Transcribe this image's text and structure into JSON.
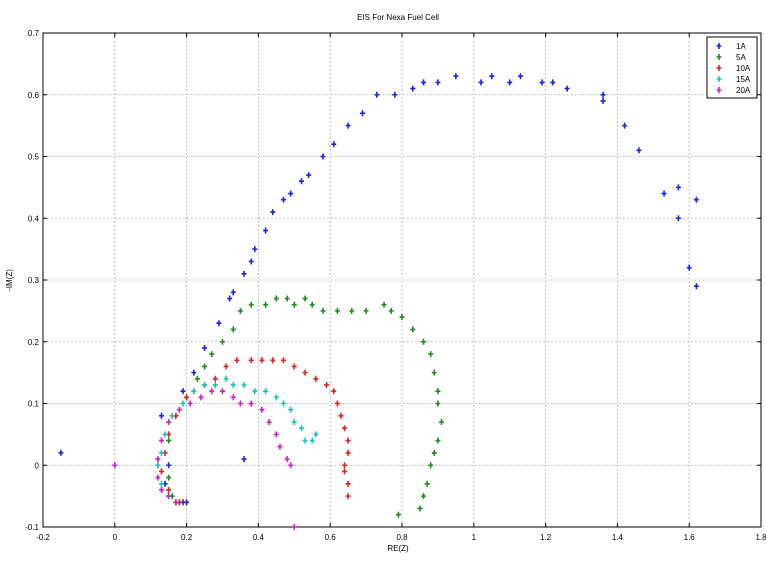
{
  "chart_data": {
    "type": "scatter",
    "title": "EIS For Nexa Fuel Cell",
    "xlabel": "RE(Z)",
    "ylabel": "-IM(Z)",
    "xlim": [
      -0.2,
      1.8
    ],
    "ylim": [
      -0.1,
      0.7
    ],
    "xticks": [
      "-0.2",
      "0",
      "0.2",
      "0.4",
      "0.6",
      "0.8",
      "1",
      "1.2",
      "1.4",
      "1.6",
      "1.8"
    ],
    "yticks": [
      "-0.1",
      "0",
      "0.1",
      "0.2",
      "0.3",
      "0.4",
      "0.5",
      "0.6",
      "0.7"
    ],
    "grid": true,
    "legend_position": "top-right",
    "series": [
      {
        "name": "1A",
        "color": "#1f1fe6",
        "points": [
          [
            -0.15,
            0.02
          ],
          [
            0.13,
            0.08
          ],
          [
            0.19,
            0.12
          ],
          [
            0.22,
            0.15
          ],
          [
            0.25,
            0.19
          ],
          [
            0.29,
            0.23
          ],
          [
            0.32,
            0.27
          ],
          [
            0.33,
            0.28
          ],
          [
            0.36,
            0.31
          ],
          [
            0.38,
            0.33
          ],
          [
            0.39,
            0.35
          ],
          [
            0.42,
            0.38
          ],
          [
            0.44,
            0.41
          ],
          [
            0.47,
            0.43
          ],
          [
            0.49,
            0.44
          ],
          [
            0.52,
            0.46
          ],
          [
            0.54,
            0.47
          ],
          [
            0.58,
            0.5
          ],
          [
            0.61,
            0.52
          ],
          [
            0.65,
            0.55
          ],
          [
            0.69,
            0.57
          ],
          [
            0.73,
            0.6
          ],
          [
            0.78,
            0.6
          ],
          [
            0.83,
            0.61
          ],
          [
            0.86,
            0.62
          ],
          [
            0.9,
            0.62
          ],
          [
            0.95,
            0.63
          ],
          [
            1.02,
            0.62
          ],
          [
            1.05,
            0.63
          ],
          [
            1.1,
            0.62
          ],
          [
            1.13,
            0.63
          ],
          [
            1.19,
            0.62
          ],
          [
            1.22,
            0.62
          ],
          [
            1.26,
            0.61
          ],
          [
            1.36,
            0.6
          ],
          [
            1.36,
            0.59
          ],
          [
            1.42,
            0.55
          ],
          [
            1.46,
            0.51
          ],
          [
            1.53,
            0.44
          ],
          [
            1.57,
            0.45
          ],
          [
            1.57,
            0.4
          ],
          [
            1.6,
            0.32
          ],
          [
            1.62,
            0.43
          ],
          [
            1.62,
            0.29
          ],
          [
            0.36,
            0.01
          ],
          [
            0.15,
            0.0
          ],
          [
            0.14,
            -0.03
          ],
          [
            0.15,
            -0.05
          ],
          [
            0.17,
            -0.06
          ],
          [
            0.19,
            -0.06
          ],
          [
            0.2,
            -0.06
          ]
        ]
      },
      {
        "name": "5A",
        "color": "#1a8c1a",
        "points": [
          [
            0.15,
            0.04
          ],
          [
            0.17,
            0.08
          ],
          [
            0.2,
            0.11
          ],
          [
            0.23,
            0.14
          ],
          [
            0.25,
            0.16
          ],
          [
            0.27,
            0.18
          ],
          [
            0.3,
            0.2
          ],
          [
            0.33,
            0.22
          ],
          [
            0.35,
            0.25
          ],
          [
            0.38,
            0.26
          ],
          [
            0.42,
            0.26
          ],
          [
            0.45,
            0.27
          ],
          [
            0.48,
            0.27
          ],
          [
            0.5,
            0.26
          ],
          [
            0.53,
            0.27
          ],
          [
            0.55,
            0.26
          ],
          [
            0.58,
            0.25
          ],
          [
            0.62,
            0.25
          ],
          [
            0.66,
            0.25
          ],
          [
            0.7,
            0.25
          ],
          [
            0.75,
            0.26
          ],
          [
            0.77,
            0.25
          ],
          [
            0.8,
            0.24
          ],
          [
            0.83,
            0.22
          ],
          [
            0.86,
            0.2
          ],
          [
            0.88,
            0.18
          ],
          [
            0.89,
            0.15
          ],
          [
            0.9,
            0.12
          ],
          [
            0.9,
            0.1
          ],
          [
            0.91,
            0.07
          ],
          [
            0.9,
            0.04
          ],
          [
            0.89,
            0.02
          ],
          [
            0.88,
            0.0
          ],
          [
            0.87,
            -0.03
          ],
          [
            0.86,
            -0.05
          ],
          [
            0.85,
            -0.07
          ],
          [
            0.79,
            -0.08
          ],
          [
            0.15,
            -0.02
          ],
          [
            0.16,
            -0.05
          ],
          [
            0.18,
            -0.06
          ]
        ]
      },
      {
        "name": "10A",
        "color": "#e61f1f",
        "points": [
          [
            0.14,
            0.02
          ],
          [
            0.15,
            0.05
          ],
          [
            0.17,
            0.08
          ],
          [
            0.2,
            0.11
          ],
          [
            0.22,
            0.12
          ],
          [
            0.25,
            0.13
          ],
          [
            0.28,
            0.14
          ],
          [
            0.31,
            0.16
          ],
          [
            0.34,
            0.17
          ],
          [
            0.38,
            0.17
          ],
          [
            0.41,
            0.17
          ],
          [
            0.44,
            0.17
          ],
          [
            0.47,
            0.17
          ],
          [
            0.5,
            0.16
          ],
          [
            0.53,
            0.15
          ],
          [
            0.56,
            0.14
          ],
          [
            0.59,
            0.13
          ],
          [
            0.61,
            0.12
          ],
          [
            0.62,
            0.1
          ],
          [
            0.63,
            0.08
          ],
          [
            0.64,
            0.06
          ],
          [
            0.65,
            0.04
          ],
          [
            0.65,
            0.02
          ],
          [
            0.64,
            0.0
          ],
          [
            0.64,
            -0.01
          ],
          [
            0.65,
            -0.03
          ],
          [
            0.65,
            -0.05
          ],
          [
            0.13,
            -0.01
          ],
          [
            0.15,
            -0.04
          ],
          [
            0.18,
            -0.06
          ]
        ]
      },
      {
        "name": "15A",
        "color": "#1fbfbf",
        "points": [
          [
            0.13,
            0.02
          ],
          [
            0.14,
            0.05
          ],
          [
            0.16,
            0.08
          ],
          [
            0.19,
            0.1
          ],
          [
            0.22,
            0.12
          ],
          [
            0.25,
            0.13
          ],
          [
            0.28,
            0.13
          ],
          [
            0.31,
            0.14
          ],
          [
            0.33,
            0.13
          ],
          [
            0.36,
            0.13
          ],
          [
            0.39,
            0.12
          ],
          [
            0.42,
            0.12
          ],
          [
            0.45,
            0.11
          ],
          [
            0.47,
            0.1
          ],
          [
            0.49,
            0.09
          ],
          [
            0.5,
            0.07
          ],
          [
            0.52,
            0.06
          ],
          [
            0.53,
            0.04
          ],
          [
            0.55,
            0.04
          ],
          [
            0.56,
            0.05
          ],
          [
            0.12,
            0.0
          ],
          [
            0.13,
            -0.03
          ],
          [
            0.15,
            -0.05
          ],
          [
            0.17,
            -0.06
          ]
        ]
      },
      {
        "name": "20A",
        "color": "#cc1fcc",
        "points": [
          [
            0.0,
            0.0
          ],
          [
            0.12,
            0.01
          ],
          [
            0.13,
            0.04
          ],
          [
            0.15,
            0.07
          ],
          [
            0.18,
            0.09
          ],
          [
            0.21,
            0.1
          ],
          [
            0.24,
            0.11
          ],
          [
            0.27,
            0.12
          ],
          [
            0.3,
            0.12
          ],
          [
            0.33,
            0.11
          ],
          [
            0.35,
            0.1
          ],
          [
            0.38,
            0.1
          ],
          [
            0.41,
            0.09
          ],
          [
            0.43,
            0.07
          ],
          [
            0.45,
            0.05
          ],
          [
            0.46,
            0.03
          ],
          [
            0.48,
            0.01
          ],
          [
            0.49,
            0.0
          ],
          [
            0.12,
            -0.02
          ],
          [
            0.13,
            -0.04
          ],
          [
            0.15,
            -0.05
          ],
          [
            0.17,
            -0.06
          ],
          [
            0.5,
            -0.1
          ]
        ]
      }
    ]
  }
}
